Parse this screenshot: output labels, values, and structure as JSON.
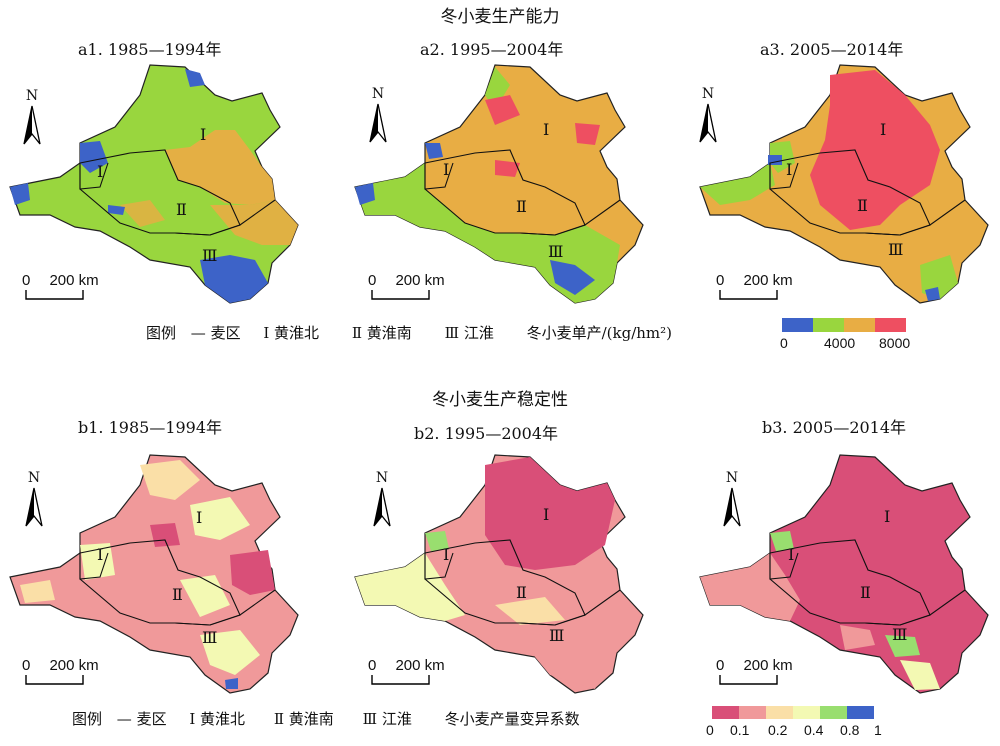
{
  "section_a": {
    "title": "冬小麦生产能力",
    "maps": [
      {
        "label": "a1. 1985—1994年"
      },
      {
        "label": "a2. 1995—2004年"
      },
      {
        "label": "a3. 2005—2014年"
      }
    ],
    "legend": {
      "prefix": "图例",
      "boundary": "— 麦区",
      "zone1": "Ⅰ 黄淮北",
      "zone2": "Ⅱ 黄淮南",
      "zone3": "Ⅲ 江淮",
      "variable": "冬小麦单产/(kg/hm²)",
      "colors": [
        "#3d63c8",
        "#99d63e",
        "#e8ad44",
        "#ee4f61"
      ],
      "ticks": [
        "0",
        "4000",
        "8000"
      ]
    }
  },
  "section_b": {
    "title": "冬小麦生产稳定性",
    "maps": [
      {
        "label": "b1. 1985—1994年"
      },
      {
        "label": "b2. 1995—2004年"
      },
      {
        "label": "b3. 2005—2014年"
      }
    ],
    "legend": {
      "prefix": "图例",
      "boundary": "— 麦区",
      "zone1": "Ⅰ 黄淮北",
      "zone2": "Ⅱ 黄淮南",
      "zone3": "Ⅲ 江淮",
      "variable": "冬小麦产量变异系数",
      "colors": [
        "#d94f78",
        "#f0999a",
        "#fadfa7",
        "#f3f9b3",
        "#99de6f",
        "#3d63c8"
      ],
      "ticks": [
        "0",
        "0.1",
        "0.2",
        "0.4",
        "0.8",
        "1"
      ]
    }
  },
  "zone_labels": [
    "Ⅰ",
    "Ⅱ",
    "Ⅲ"
  ],
  "north": "N",
  "scale": "0    200 km",
  "scale_zero": "0",
  "scale_dist": "200 km"
}
